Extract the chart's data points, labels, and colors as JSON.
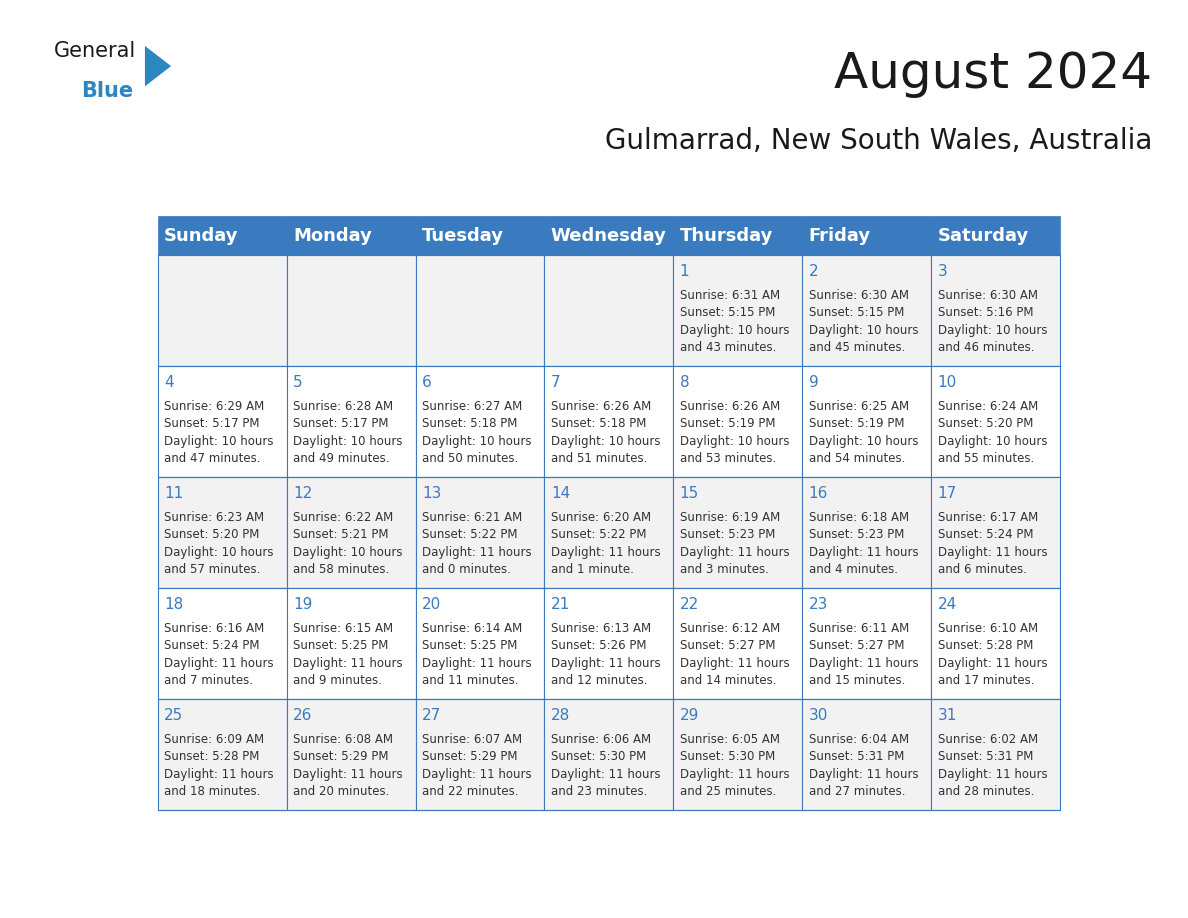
{
  "title": "August 2024",
  "subtitle": "Gulmarrad, New South Wales, Australia",
  "days_of_week": [
    "Sunday",
    "Monday",
    "Tuesday",
    "Wednesday",
    "Thursday",
    "Friday",
    "Saturday"
  ],
  "header_bg": "#3a7abf",
  "header_text": "#ffffff",
  "row_bg_odd": "#f2f2f2",
  "row_bg_even": "#ffffff",
  "cell_border": "#3a7abf",
  "day_num_color": "#3a7abf",
  "cell_text_color": "#333333",
  "calendar_data": [
    [
      "",
      "",
      "",
      "",
      "1\nSunrise: 6:31 AM\nSunset: 5:15 PM\nDaylight: 10 hours\nand 43 minutes.",
      "2\nSunrise: 6:30 AM\nSunset: 5:15 PM\nDaylight: 10 hours\nand 45 minutes.",
      "3\nSunrise: 6:30 AM\nSunset: 5:16 PM\nDaylight: 10 hours\nand 46 minutes."
    ],
    [
      "4\nSunrise: 6:29 AM\nSunset: 5:17 PM\nDaylight: 10 hours\nand 47 minutes.",
      "5\nSunrise: 6:28 AM\nSunset: 5:17 PM\nDaylight: 10 hours\nand 49 minutes.",
      "6\nSunrise: 6:27 AM\nSunset: 5:18 PM\nDaylight: 10 hours\nand 50 minutes.",
      "7\nSunrise: 6:26 AM\nSunset: 5:18 PM\nDaylight: 10 hours\nand 51 minutes.",
      "8\nSunrise: 6:26 AM\nSunset: 5:19 PM\nDaylight: 10 hours\nand 53 minutes.",
      "9\nSunrise: 6:25 AM\nSunset: 5:19 PM\nDaylight: 10 hours\nand 54 minutes.",
      "10\nSunrise: 6:24 AM\nSunset: 5:20 PM\nDaylight: 10 hours\nand 55 minutes."
    ],
    [
      "11\nSunrise: 6:23 AM\nSunset: 5:20 PM\nDaylight: 10 hours\nand 57 minutes.",
      "12\nSunrise: 6:22 AM\nSunset: 5:21 PM\nDaylight: 10 hours\nand 58 minutes.",
      "13\nSunrise: 6:21 AM\nSunset: 5:22 PM\nDaylight: 11 hours\nand 0 minutes.",
      "14\nSunrise: 6:20 AM\nSunset: 5:22 PM\nDaylight: 11 hours\nand 1 minute.",
      "15\nSunrise: 6:19 AM\nSunset: 5:23 PM\nDaylight: 11 hours\nand 3 minutes.",
      "16\nSunrise: 6:18 AM\nSunset: 5:23 PM\nDaylight: 11 hours\nand 4 minutes.",
      "17\nSunrise: 6:17 AM\nSunset: 5:24 PM\nDaylight: 11 hours\nand 6 minutes."
    ],
    [
      "18\nSunrise: 6:16 AM\nSunset: 5:24 PM\nDaylight: 11 hours\nand 7 minutes.",
      "19\nSunrise: 6:15 AM\nSunset: 5:25 PM\nDaylight: 11 hours\nand 9 minutes.",
      "20\nSunrise: 6:14 AM\nSunset: 5:25 PM\nDaylight: 11 hours\nand 11 minutes.",
      "21\nSunrise: 6:13 AM\nSunset: 5:26 PM\nDaylight: 11 hours\nand 12 minutes.",
      "22\nSunrise: 6:12 AM\nSunset: 5:27 PM\nDaylight: 11 hours\nand 14 minutes.",
      "23\nSunrise: 6:11 AM\nSunset: 5:27 PM\nDaylight: 11 hours\nand 15 minutes.",
      "24\nSunrise: 6:10 AM\nSunset: 5:28 PM\nDaylight: 11 hours\nand 17 minutes."
    ],
    [
      "25\nSunrise: 6:09 AM\nSunset: 5:28 PM\nDaylight: 11 hours\nand 18 minutes.",
      "26\nSunrise: 6:08 AM\nSunset: 5:29 PM\nDaylight: 11 hours\nand 20 minutes.",
      "27\nSunrise: 6:07 AM\nSunset: 5:29 PM\nDaylight: 11 hours\nand 22 minutes.",
      "28\nSunrise: 6:06 AM\nSunset: 5:30 PM\nDaylight: 11 hours\nand 23 minutes.",
      "29\nSunrise: 6:05 AM\nSunset: 5:30 PM\nDaylight: 11 hours\nand 25 minutes.",
      "30\nSunrise: 6:04 AM\nSunset: 5:31 PM\nDaylight: 11 hours\nand 27 minutes.",
      "31\nSunrise: 6:02 AM\nSunset: 5:31 PM\nDaylight: 11 hours\nand 28 minutes."
    ]
  ],
  "logo_text_general": "General",
  "logo_text_blue": "Blue",
  "logo_color_general": "#1a1a1a",
  "logo_color_blue": "#2e86c1",
  "logo_triangle_color": "#2e86c1",
  "fig_width": 11.88,
  "fig_height": 9.18,
  "title_fontsize": 36,
  "subtitle_fontsize": 20,
  "header_fontsize": 13,
  "day_num_fontsize": 11,
  "cell_text_fontsize": 8.5
}
